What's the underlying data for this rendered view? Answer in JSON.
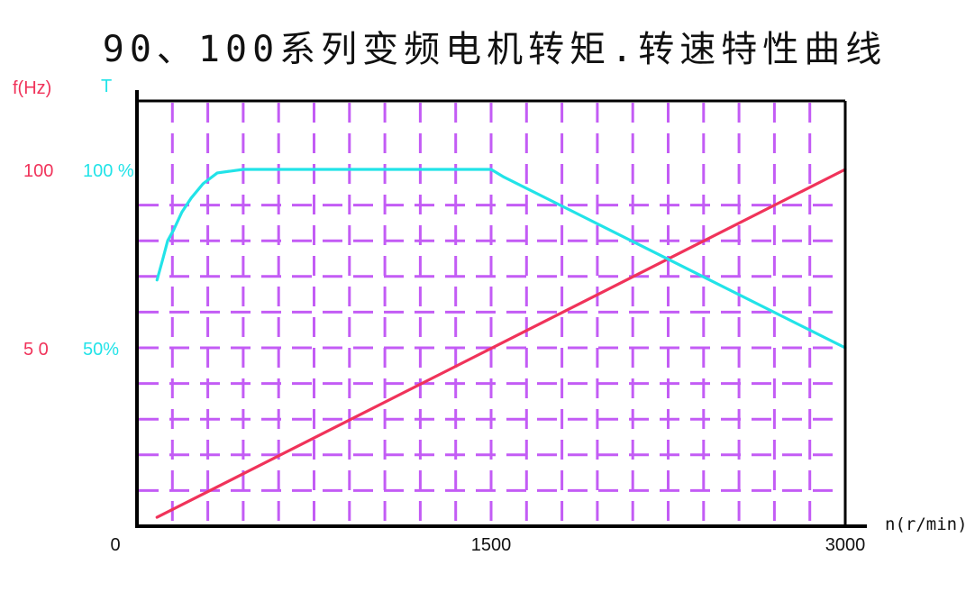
{
  "chart_data": {
    "type": "line",
    "title": "90、100系列变频电机转矩.转速特性曲线",
    "xlabel": "n(r/min)",
    "ylabel_left": "f(Hz)",
    "ylabel_right": "T",
    "xlim": [
      0,
      3000
    ],
    "ylim": [
      0,
      100
    ],
    "x_ticks": [
      {
        "value": 0,
        "label": "0"
      },
      {
        "value": 1500,
        "label": "1500"
      },
      {
        "value": 3000,
        "label": "3000"
      }
    ],
    "y_ticks_left": [
      {
        "value": 100,
        "label": "100"
      },
      {
        "value": 50,
        "label": "5 0"
      }
    ],
    "y_ticks_right": [
      {
        "value": 100,
        "label": "100 %"
      },
      {
        "value": 50,
        "label": "50%"
      }
    ],
    "grid": true,
    "colors": {
      "frequency": "#f0335a",
      "torque": "#22e3e8",
      "grid": "#c35cf5",
      "background": "#ffffff",
      "frame": "#000000",
      "title": "#111111"
    },
    "series": [
      {
        "key": "frequency",
        "points": [
          [
            85,
            2.5
          ],
          [
            3000,
            100
          ]
        ]
      },
      {
        "key": "torque",
        "points": [
          [
            85,
            69
          ],
          [
            110,
            75
          ],
          [
            130,
            80
          ],
          [
            155,
            83
          ],
          [
            190,
            88
          ],
          [
            230,
            92
          ],
          [
            280,
            96
          ],
          [
            340,
            99
          ],
          [
            450,
            100
          ],
          [
            1500,
            100
          ],
          [
            1550,
            98
          ],
          [
            3000,
            50
          ]
        ]
      }
    ]
  }
}
